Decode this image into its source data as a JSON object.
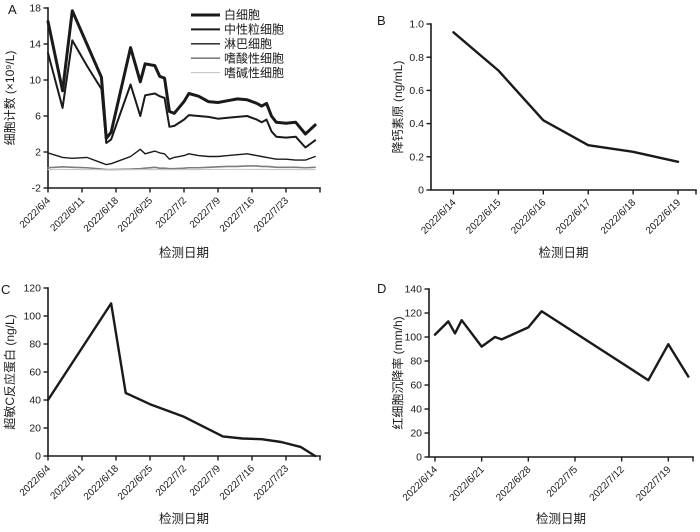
{
  "figure": {
    "background": "#ffffff",
    "axis_color": "#1a1a1a",
    "text_color": "#1a1a1a"
  },
  "chart_data": [
    {
      "panel_label": "A",
      "type": "line",
      "xlabel": "检测日期",
      "ylabel": "细胞计数 (×10⁹/L)",
      "ylim": [
        -2,
        18
      ],
      "yticks": [
        -2,
        2,
        6,
        10,
        14,
        18
      ],
      "ytick_labels": [
        "-2",
        "2",
        "6",
        "10",
        "14",
        "18"
      ],
      "x_tick_labels": [
        "2022/6/4",
        "2022/6/11",
        "2022/6/18",
        "2022/6/25",
        "2022/7/2",
        "2022/7/9",
        "2022/7/16",
        "2022/7/23"
      ],
      "grid": false,
      "legend_position": "top-right",
      "x": [
        "2022/6/4",
        "2022/6/7",
        "2022/6/9",
        "2022/6/12",
        "2022/6/15",
        "2022/6/16",
        "2022/6/17",
        "2022/6/21",
        "2022/6/23",
        "2022/6/24",
        "2022/6/26",
        "2022/6/27",
        "2022/6/28",
        "2022/6/29",
        "2022/6/30",
        "2022/7/2",
        "2022/7/3",
        "2022/7/5",
        "2022/7/7",
        "2022/7/9",
        "2022/7/11",
        "2022/7/13",
        "2022/7/15",
        "2022/7/17",
        "2022/7/18",
        "2022/7/19",
        "2022/7/20",
        "2022/7/21",
        "2022/7/23",
        "2022/7/25",
        "2022/7/27",
        "2022/7/29"
      ],
      "series": [
        {
          "name": "白细胞",
          "color": "#1a1a1a",
          "width": 3.0,
          "values": [
            16.5,
            8.8,
            17.7,
            14.0,
            10.3,
            3.5,
            4.2,
            13.6,
            9.8,
            11.8,
            11.6,
            10.4,
            10.2,
            6.5,
            6.3,
            7.6,
            8.5,
            8.2,
            7.6,
            7.5,
            7.7,
            7.9,
            7.8,
            7.4,
            7.1,
            7.4,
            6.0,
            5.3,
            5.2,
            5.3,
            4.0,
            5.0
          ]
        },
        {
          "name": "中性粒细胞",
          "color": "#1a1a1a",
          "width": 2.0,
          "values": [
            13.0,
            6.9,
            14.4,
            11.6,
            9.0,
            3.0,
            3.4,
            9.5,
            6.0,
            8.3,
            8.5,
            8.2,
            8.0,
            4.8,
            4.9,
            5.6,
            6.1,
            6.0,
            5.9,
            5.7,
            5.8,
            5.9,
            6.0,
            5.6,
            5.3,
            5.6,
            4.3,
            3.7,
            3.6,
            3.7,
            2.5,
            3.3
          ]
        },
        {
          "name": "淋巴细胞",
          "color": "#1a1a1a",
          "width": 1.4,
          "values": [
            1.9,
            1.4,
            1.3,
            1.4,
            0.8,
            0.6,
            0.7,
            1.5,
            2.3,
            1.8,
            2.1,
            1.9,
            1.8,
            1.2,
            1.4,
            1.6,
            1.8,
            1.6,
            1.5,
            1.5,
            1.6,
            1.7,
            1.8,
            1.6,
            1.5,
            1.4,
            1.3,
            1.2,
            1.2,
            1.1,
            1.1,
            1.5
          ]
        },
        {
          "name": "嗜酸性细胞",
          "color": "#7d7d7d",
          "width": 1.6,
          "values": [
            0.25,
            0.35,
            0.3,
            0.25,
            0.1,
            0.05,
            0.05,
            0.1,
            0.15,
            0.2,
            0.3,
            0.2,
            0.2,
            0.15,
            0.15,
            0.2,
            0.25,
            0.25,
            0.3,
            0.35,
            0.4,
            0.4,
            0.45,
            0.45,
            0.4,
            0.4,
            0.35,
            0.3,
            0.3,
            0.3,
            0.25,
            0.3
          ]
        },
        {
          "name": "嗜碱性细胞",
          "color": "#c8c8c8",
          "width": 1.1,
          "values": [
            0.05,
            0.06,
            0.05,
            0.05,
            0.03,
            0.02,
            0.03,
            0.04,
            0.05,
            0.06,
            0.05,
            0.05,
            0.04,
            0.03,
            0.04,
            0.05,
            0.05,
            0.05,
            0.06,
            0.06,
            0.07,
            0.07,
            0.07,
            0.06,
            0.06,
            0.06,
            0.05,
            0.05,
            0.05,
            0.05,
            0.04,
            0.05
          ]
        }
      ]
    },
    {
      "panel_label": "B",
      "type": "line",
      "xlabel": "检测日期",
      "ylabel": "降钙素原 (ng/mL)",
      "ylim": [
        0,
        1.0
      ],
      "yticks": [
        0,
        0.2,
        0.4,
        0.6,
        0.8,
        1.0
      ],
      "ytick_labels": [
        "0",
        "0.2",
        "0.4",
        "0.6",
        "0.8",
        "1.0"
      ],
      "x_tick_labels": [
        "2022/6/14",
        "2022/6/15",
        "2022/6/16",
        "2022/6/17",
        "2022/6/18",
        "2022/6/19"
      ],
      "grid": false,
      "x": [
        "2022/6/14",
        "2022/6/15",
        "2022/6/16",
        "2022/6/17",
        "2022/6/18",
        "2022/6/19"
      ],
      "series": [
        {
          "name": "降钙素原",
          "color": "#1a1a1a",
          "width": 2.4,
          "values": [
            0.95,
            0.72,
            0.42,
            0.27,
            0.23,
            0.17
          ]
        }
      ]
    },
    {
      "panel_label": "C",
      "type": "line",
      "xlabel": "检测日期",
      "ylabel": "超敏C反应蛋白 (ng/L)",
      "ylim": [
        0,
        120
      ],
      "yticks": [
        0,
        20,
        40,
        60,
        80,
        100,
        120
      ],
      "ytick_labels": [
        "0",
        "20",
        "40",
        "60",
        "80",
        "100",
        "120"
      ],
      "x_tick_labels": [
        "2022/6/4",
        "2022/6/11",
        "2022/6/18",
        "2022/6/25",
        "2022/7/2",
        "2022/7/9",
        "2022/7/16",
        "2022/7/23"
      ],
      "grid": false,
      "x": [
        "2022/6/4",
        "2022/6/17",
        "2022/6/20",
        "2022/6/25",
        "2022/7/2",
        "2022/7/10",
        "2022/7/14",
        "2022/7/18",
        "2022/7/22",
        "2022/7/26",
        "2022/7/29"
      ],
      "series": [
        {
          "name": "超敏C反应蛋白",
          "color": "#1a1a1a",
          "width": 2.4,
          "values": [
            40,
            109,
            45,
            37,
            28,
            14,
            12.5,
            12,
            10,
            6.5,
            0
          ]
        }
      ]
    },
    {
      "panel_label": "D",
      "type": "line",
      "xlabel": "检测日期",
      "ylabel": "红细胞沉降率 (mm/h)",
      "ylim": [
        0,
        140
      ],
      "yticks": [
        0,
        20,
        40,
        60,
        80,
        100,
        120,
        140
      ],
      "ytick_labels": [
        "0",
        "20",
        "40",
        "60",
        "80",
        "100",
        "120",
        "140"
      ],
      "x_tick_labels": [
        "2022/6/14",
        "2022/6/21",
        "2022/6/28",
        "2022/7/5",
        "2022/7/12",
        "2022/7/19"
      ],
      "grid": false,
      "x": [
        "2022/6/14",
        "2022/6/16",
        "2022/6/17",
        "2022/6/18",
        "2022/6/21",
        "2022/6/23",
        "2022/6/24",
        "2022/6/26",
        "2022/6/28",
        "2022/6/30",
        "2022/7/16",
        "2022/7/19",
        "2022/7/22"
      ],
      "series": [
        {
          "name": "红细胞沉降率",
          "color": "#1a1a1a",
          "width": 2.4,
          "values": [
            102,
            113,
            103,
            114,
            92,
            100,
            98,
            103,
            108,
            121.5,
            64,
            94,
            67
          ]
        }
      ]
    }
  ]
}
